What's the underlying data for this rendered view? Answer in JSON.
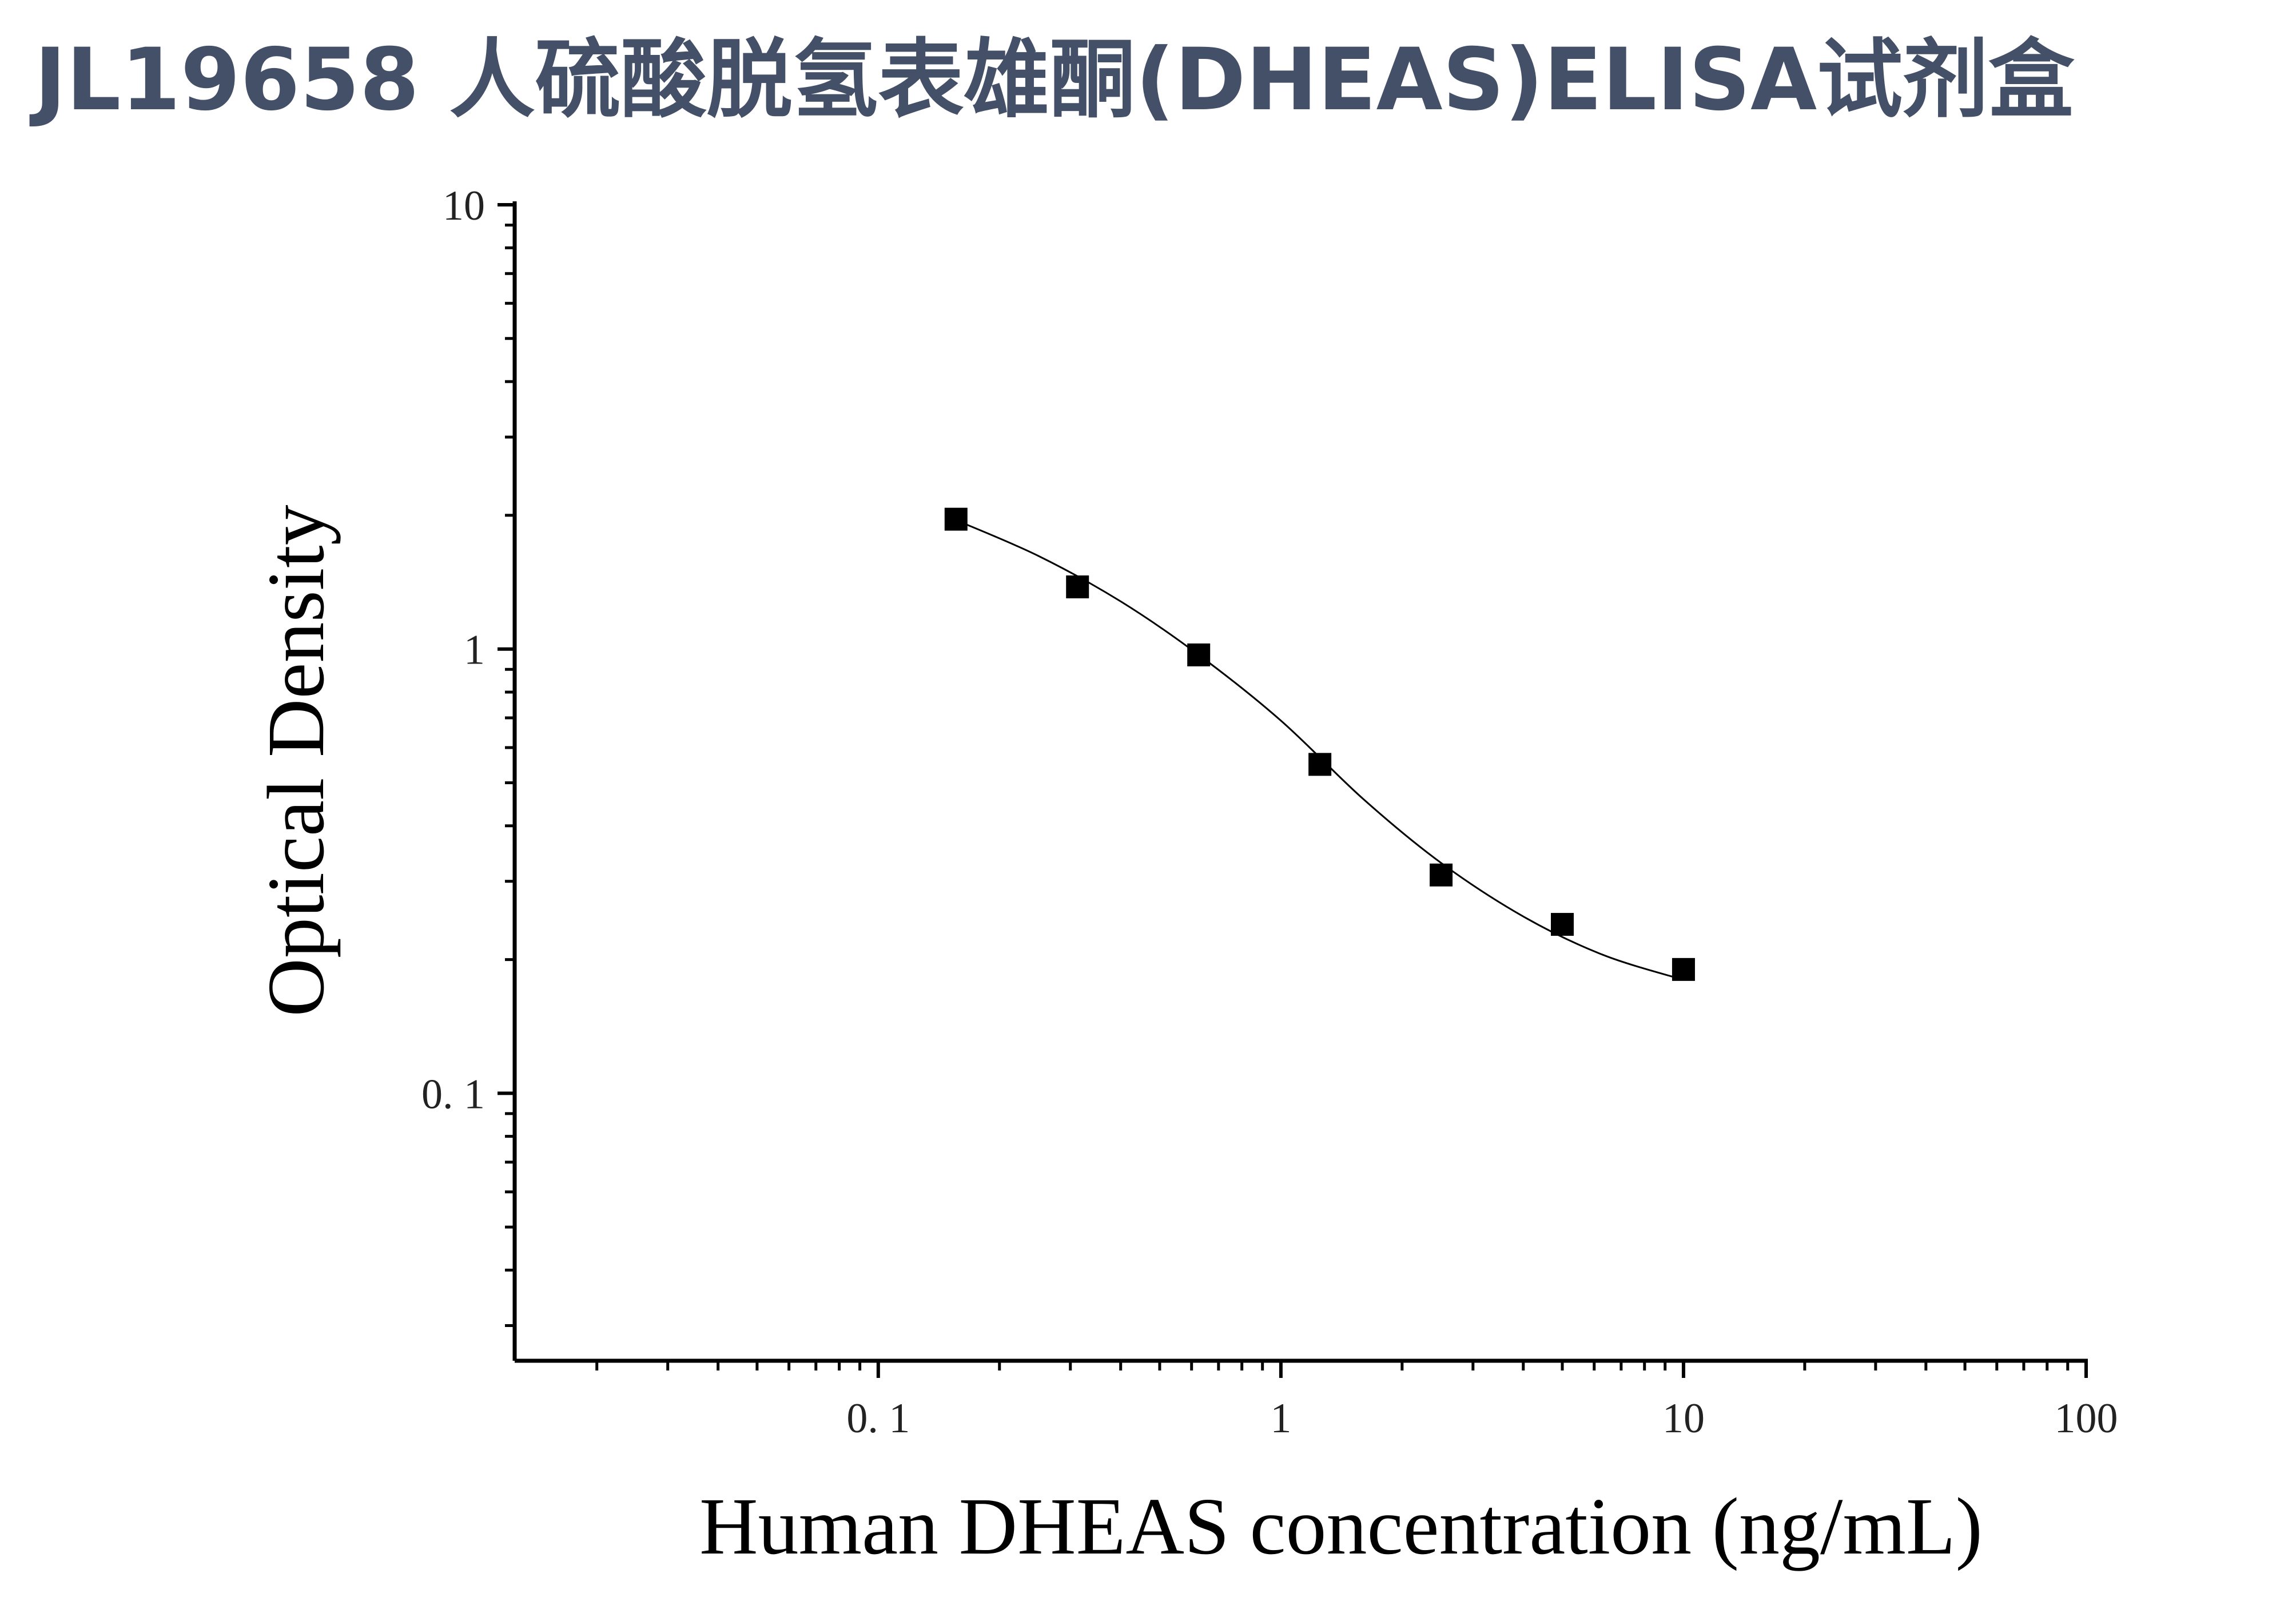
{
  "title": "JL19658 人硫酸脱氢表雄酮(DHEAS)ELISA试剂盒",
  "chart_data": {
    "type": "scatter",
    "title": "JL19658 人硫酸脱氢表雄酮(DHEAS)ELISA试剂盒",
    "xlabel": "Human DHEAS concentration (ng/mL)",
    "ylabel": "Optical Density",
    "xscale": "log",
    "yscale": "log",
    "xlim": [
      0.0125,
      100
    ],
    "ylim": [
      0.025,
      10
    ],
    "x_ticks": [
      {
        "value": 0.1,
        "label": "0. 1"
      },
      {
        "value": 1,
        "label": "1"
      },
      {
        "value": 10,
        "label": "10"
      },
      {
        "value": 100,
        "label": "100"
      }
    ],
    "y_ticks": [
      {
        "value": 0.1,
        "label": "0. 1"
      },
      {
        "value": 1,
        "label": "1"
      },
      {
        "value": 10,
        "label": "10"
      }
    ],
    "grid": false,
    "legend": "none",
    "marker": "square",
    "marker_color": "#000000",
    "line_color": "#000000",
    "points": [
      {
        "x": 0.156,
        "y": 1.96
      },
      {
        "x": 0.3125,
        "y": 1.38
      },
      {
        "x": 0.625,
        "y": 0.97
      },
      {
        "x": 1.25,
        "y": 0.55
      },
      {
        "x": 2.5,
        "y": 0.31
      },
      {
        "x": 5,
        "y": 0.24
      },
      {
        "x": 10,
        "y": 0.19
      }
    ],
    "fit_curve": {
      "type": "4PL",
      "x": [
        0.156,
        0.25,
        0.4,
        0.625,
        1.0,
        1.6,
        2.5,
        4.0,
        6.3,
        10
      ],
      "y": [
        1.95,
        1.62,
        1.28,
        0.97,
        0.69,
        0.46,
        0.33,
        0.25,
        0.205,
        0.18
      ]
    }
  }
}
